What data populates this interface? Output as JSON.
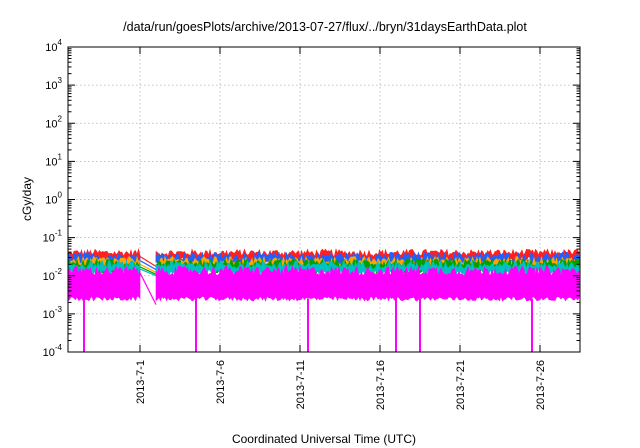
{
  "chart_data": {
    "type": "line",
    "title": "/data/run/goesPlots/archive/2013-07-27/flux/../bryn/31daysEarthData.plot",
    "xlabel": "Coordinated Universal Time (UTC)",
    "ylabel": "cGy/day",
    "x_range": [
      "2013-06-26T12:00",
      "2013-07-28T12:00"
    ],
    "x_ticks": [
      "2013-7-1",
      "2013-7-6",
      "2013-7-11",
      "2013-7-16",
      "2013-7-21",
      "2013-7-26"
    ],
    "y_scale": "log",
    "ylim": [
      0.0001,
      10000
    ],
    "y_tick_labels": [
      {
        "base": "10",
        "exp": "-4"
      },
      {
        "base": "10",
        "exp": "-3"
      },
      {
        "base": "10",
        "exp": "-2"
      },
      {
        "base": "10",
        "exp": "-1"
      },
      {
        "base": "10",
        "exp": "0"
      },
      {
        "base": "10",
        "exp": "1"
      },
      {
        "base": "10",
        "exp": "2"
      },
      {
        "base": "10",
        "exp": "3"
      },
      {
        "base": "10",
        "exp": "4"
      }
    ],
    "grid": true,
    "data_gap": [
      "2013-07-01T00:00",
      "2013-07-02T00:00"
    ],
    "series": [
      {
        "color": "#ff2020",
        "typical": 0.032,
        "peak": 0.05
      },
      {
        "color": "#2060ff",
        "typical": 0.025,
        "peak": 0.042
      },
      {
        "color": "#ffa500",
        "typical": 0.02,
        "peak": 0.032
      },
      {
        "color": "#00a000",
        "typical": 0.017,
        "peak": 0.028
      },
      {
        "color": "#00c0c0",
        "typical": 0.015,
        "peak": 0.025
      },
      {
        "color": "#ff00ff",
        "typical": 0.008,
        "low": 0.0025,
        "high": 0.012
      }
    ],
    "dropouts": [
      "2013-06-27T12:00",
      "2013-07-04T12:00",
      "2013-07-11T12:00",
      "2013-07-17T00:00",
      "2013-07-18T12:00",
      "2013-07-25T12:00"
    ]
  }
}
